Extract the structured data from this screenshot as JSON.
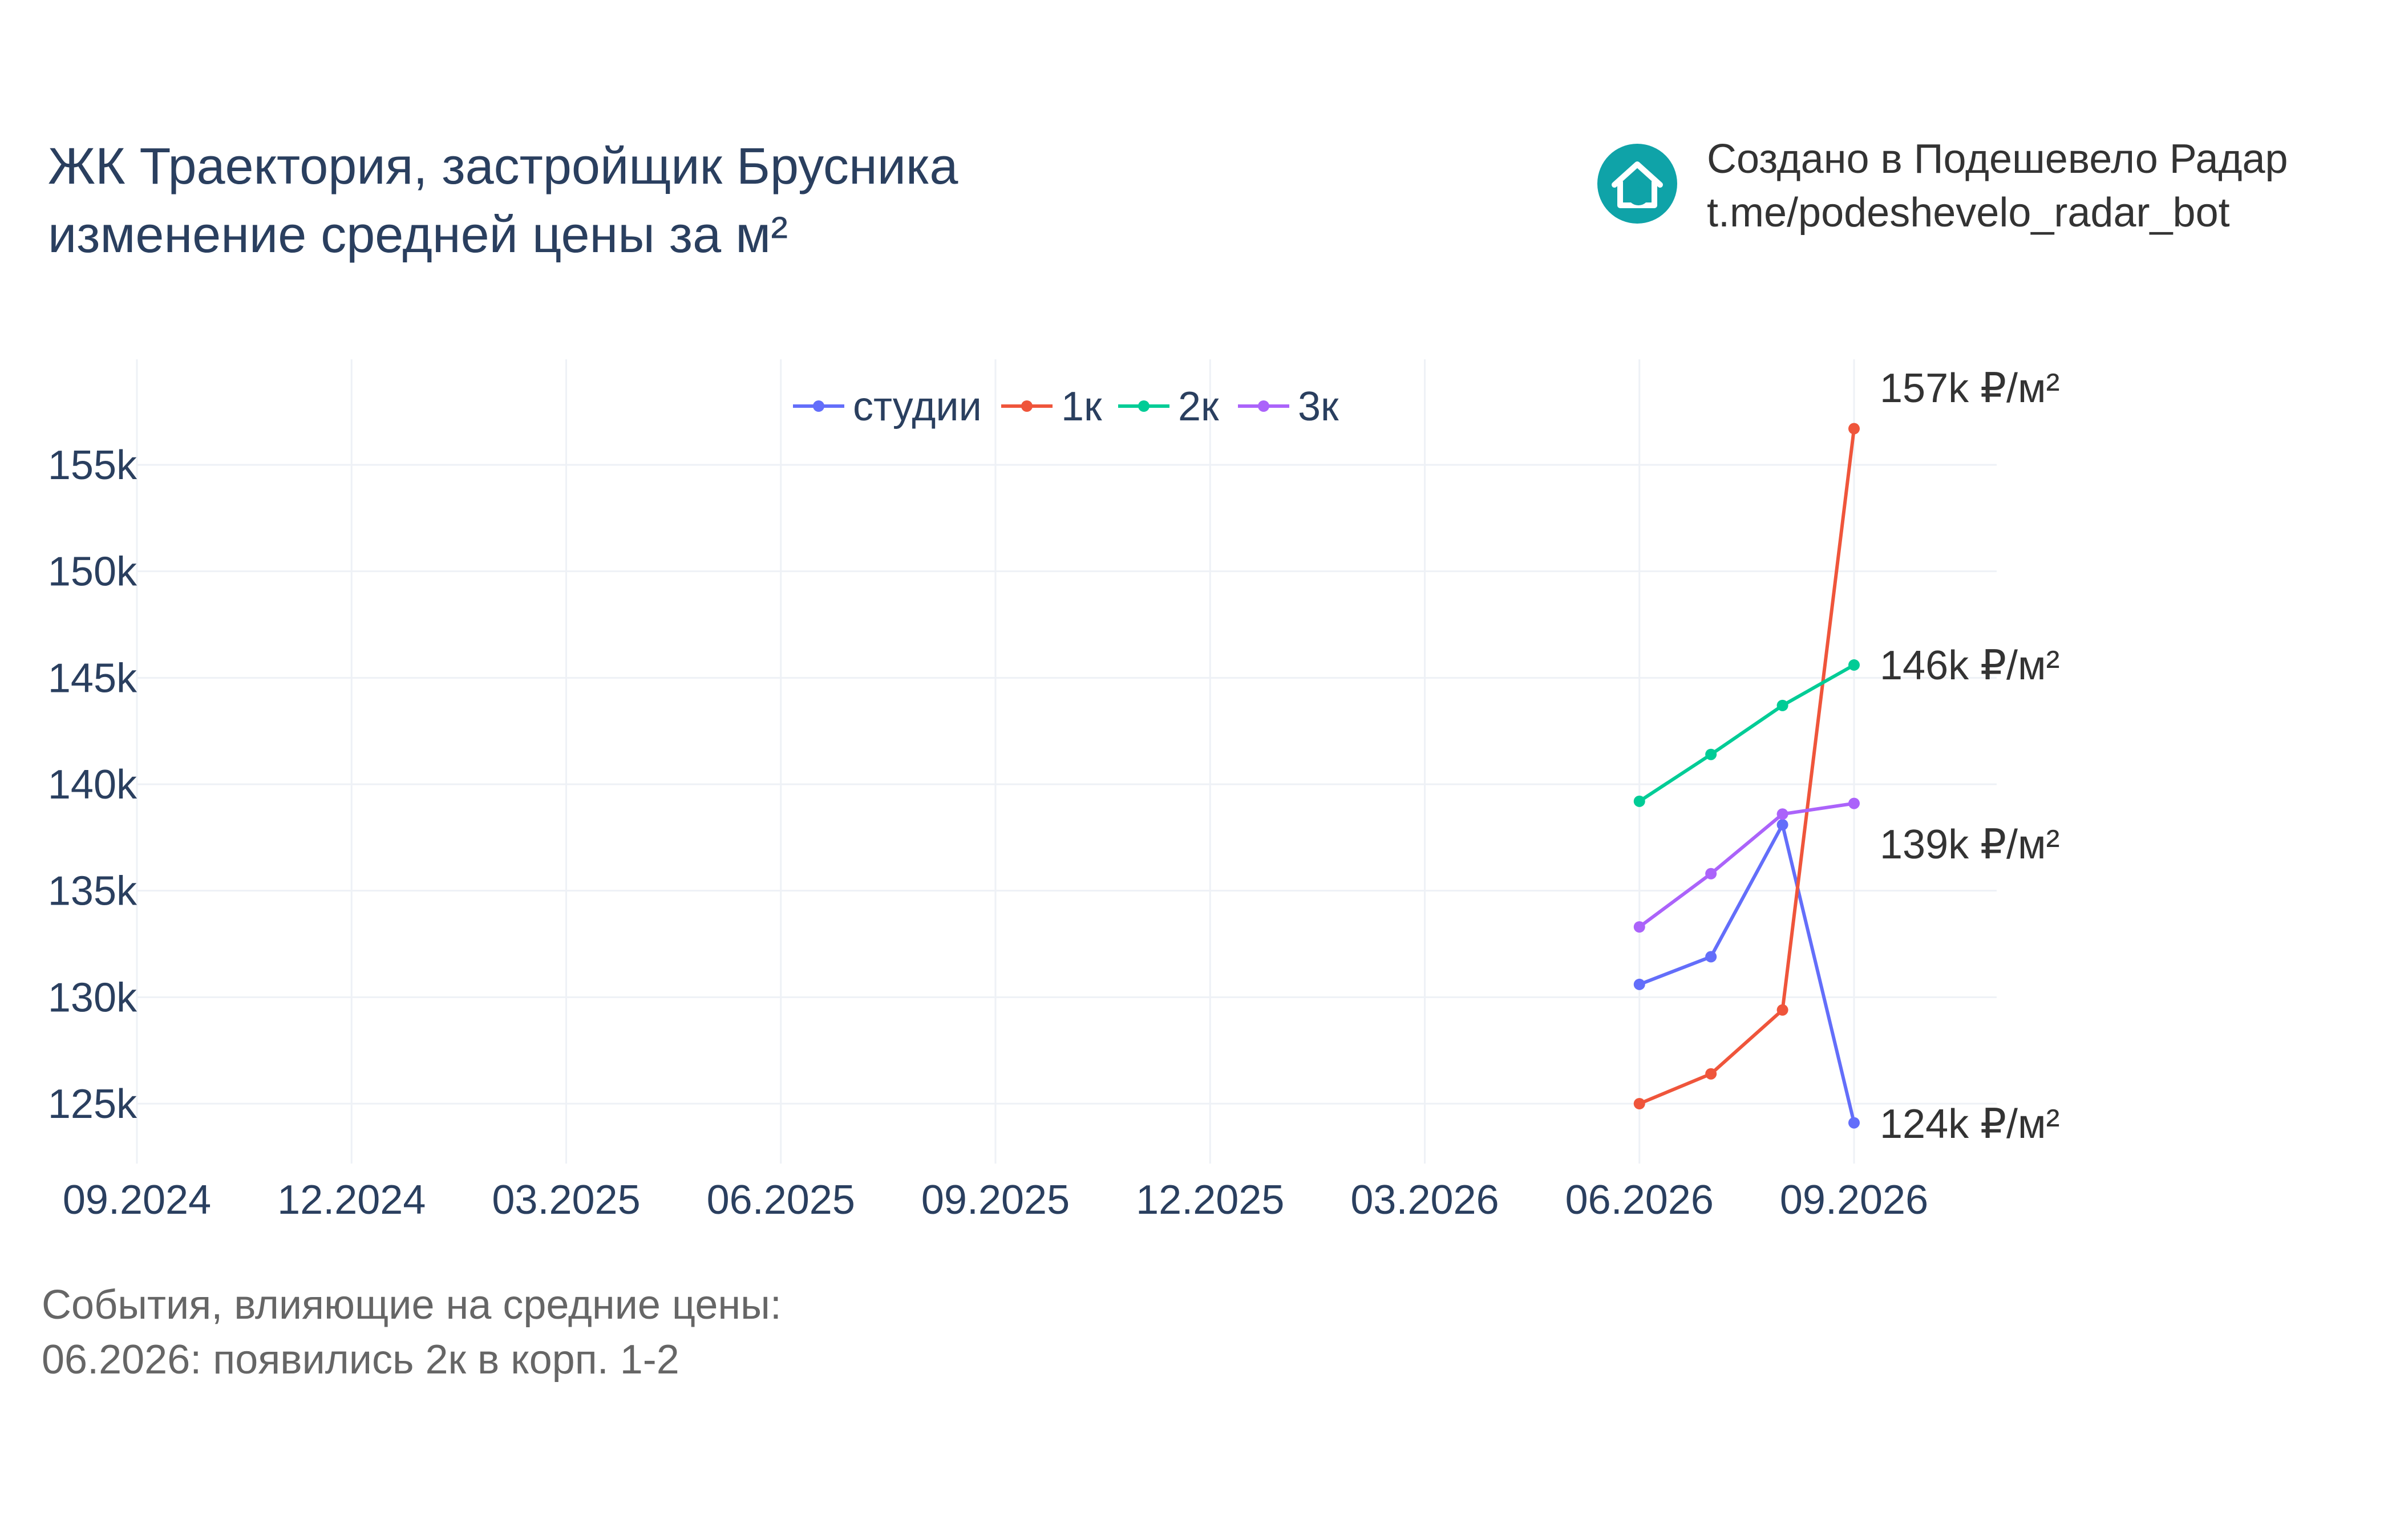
{
  "title": {
    "line1": "ЖК Траектория, застройщик Брусника",
    "line2": "изменение средней цены за м²"
  },
  "branding": {
    "line1": "Создано в Подешевело Радар",
    "line2": "t.me/podeshevelo_radar_bot",
    "logo_icon": "house-refresh-icon",
    "logo_color": "#0fa3a8"
  },
  "events": {
    "heading": "События, влияющие на средние цены:",
    "items": [
      "06.2026: появились 2к в корп. 1-2"
    ]
  },
  "chart_data": {
    "type": "line",
    "x_ticks": [
      "09.2024",
      "12.2024",
      "03.2025",
      "06.2025",
      "09.2025",
      "12.2025",
      "03.2026",
      "06.2026",
      "09.2026"
    ],
    "y_ticks": [
      "125k",
      "130k",
      "135k",
      "140k",
      "145k",
      "150k",
      "155k"
    ],
    "ylim": [
      122000,
      159500
    ],
    "grid": true,
    "legend_position": "top",
    "series": [
      {
        "name": "студии",
        "color": "#636efa",
        "points": [
          [
            "2026-06",
            130600
          ],
          [
            "2026-07",
            131900
          ],
          [
            "2026-08",
            138100
          ],
          [
            "2026-09",
            124100
          ]
        ],
        "end_label": "124k ₽/м²"
      },
      {
        "name": "1к",
        "color": "#ef553b",
        "points": [
          [
            "2026-06",
            125000
          ],
          [
            "2026-07",
            126400
          ],
          [
            "2026-08",
            129400
          ],
          [
            "2026-09",
            156700
          ]
        ],
        "end_label": "157k ₽/м²"
      },
      {
        "name": "2к",
        "color": "#00cc96",
        "points": [
          [
            "2026-06",
            139200
          ],
          [
            "2026-07",
            141400
          ],
          [
            "2026-08",
            143700
          ],
          [
            "2026-09",
            145600
          ]
        ],
        "end_label": "146k ₽/м²"
      },
      {
        "name": "3к",
        "color": "#ab63fa",
        "points": [
          [
            "2026-06",
            133300
          ],
          [
            "2026-07",
            135800
          ],
          [
            "2026-08",
            138600
          ],
          [
            "2026-09",
            139100
          ]
        ],
        "end_label": "139k ₽/м²"
      }
    ]
  }
}
